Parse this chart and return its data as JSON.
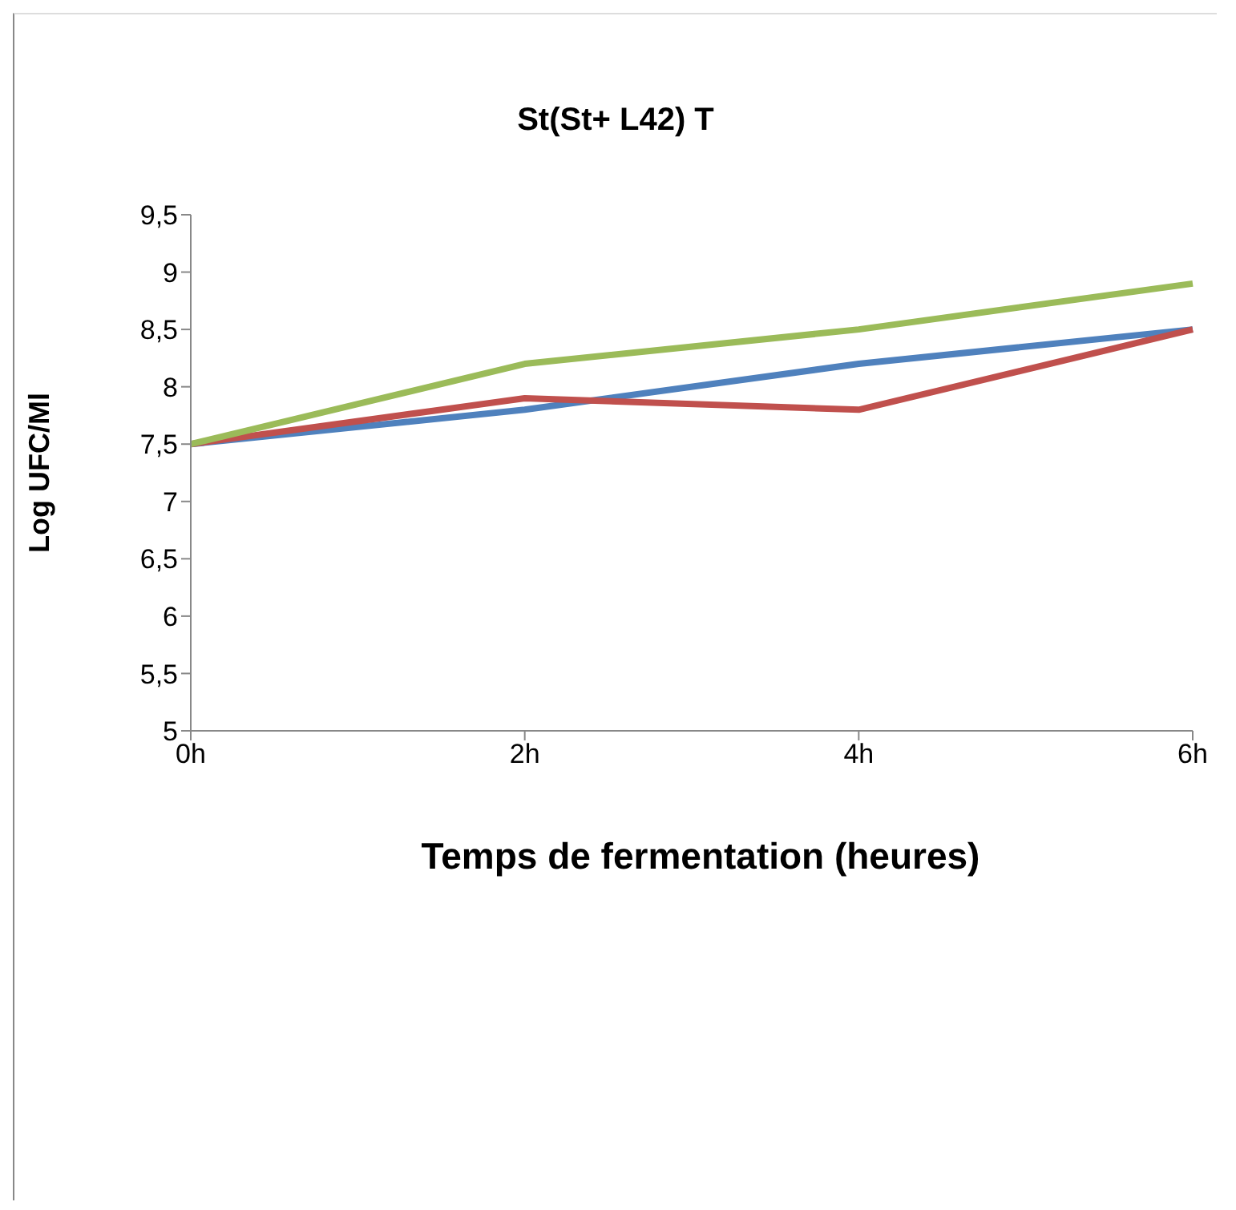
{
  "chart_data": {
    "type": "line",
    "title": "St(St+ L42) T",
    "xlabel": "Temps de fermentation (heures)",
    "ylabel": "Log UFC/Ml",
    "categories": [
      "0h",
      "2h",
      "4h",
      "6h"
    ],
    "series": [
      {
        "color": "#4f81bd",
        "values": [
          7.5,
          7.8,
          8.2,
          8.5
        ]
      },
      {
        "color": "#c0504d",
        "values": [
          7.5,
          7.9,
          7.8,
          8.5
        ]
      },
      {
        "color": "#9bbb59",
        "values": [
          7.5,
          8.2,
          8.5,
          8.9
        ]
      }
    ],
    "ylim": [
      5,
      9.5
    ],
    "yticks": [
      {
        "value": 5,
        "label": "5"
      },
      {
        "value": 5.5,
        "label": "5,5"
      },
      {
        "value": 6,
        "label": "6"
      },
      {
        "value": 6.5,
        "label": "6,5"
      },
      {
        "value": 7,
        "label": "7"
      },
      {
        "value": 7.5,
        "label": "7,5"
      },
      {
        "value": 8,
        "label": "8"
      },
      {
        "value": 8.5,
        "label": "8,5"
      },
      {
        "value": 9,
        "label": "9"
      },
      {
        "value": 9.5,
        "label": "9,5"
      }
    ],
    "grid": false,
    "legend": false,
    "marker": "none",
    "line_style": "solid"
  }
}
